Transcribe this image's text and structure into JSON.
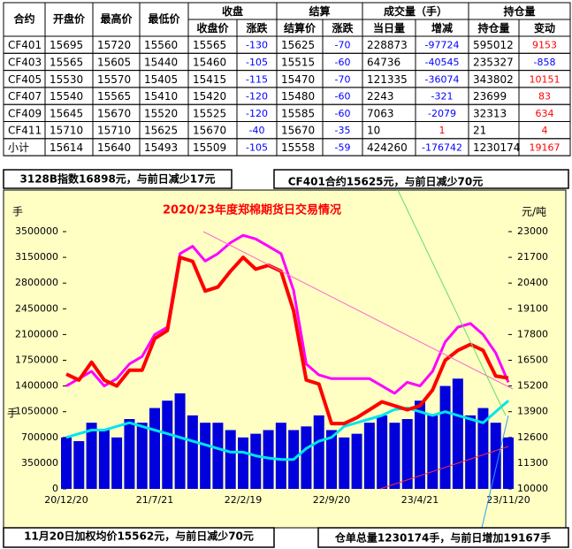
{
  "table": {
    "header_top": [
      "合约",
      "开盘价",
      "最高价",
      "最低价",
      "收盘",
      "结算",
      "成交量（手）",
      "持仓量"
    ],
    "header_sub": [
      "收盘价",
      "涨跌",
      "结算价",
      "涨跌",
      "当日量",
      "增减",
      "持仓量",
      "变动"
    ],
    "rows": [
      [
        "CF401",
        15695,
        15720,
        15560,
        15565,
        -130,
        15625,
        -70,
        228873,
        -97724,
        595012,
        9153
      ],
      [
        "CF403",
        15565,
        15605,
        15440,
        15460,
        -105,
        15515,
        -60,
        64736,
        -40545,
        235327,
        -858
      ],
      [
        "CF405",
        15530,
        15570,
        15405,
        15415,
        -115,
        15470,
        -70,
        121335,
        -36074,
        343802,
        10151
      ],
      [
        "CF407",
        15540,
        15565,
        15410,
        15420,
        -120,
        15480,
        -60,
        2243,
        -321,
        23699,
        83
      ],
      [
        "CF409",
        15645,
        15670,
        15520,
        15525,
        -120,
        15585,
        -60,
        7063,
        -2079,
        32313,
        634
      ],
      [
        "CF411",
        15710,
        15710,
        15625,
        15670,
        -40,
        15670,
        -35,
        10,
        1,
        21,
        4
      ],
      [
        "小计",
        15614,
        15640,
        15493,
        15509,
        -105,
        15558,
        -59,
        424260,
        -176742,
        1230174,
        19167
      ]
    ]
  },
  "notes": {
    "index": "3128B指数16898元，与前日减少17元",
    "contract": "CF401合约15625元，与前日减少70元",
    "average": "11月20日加权均价15562元，与前日减少70元",
    "warehouse": "仓单总量1230174手，与前日增加19167手"
  },
  "chart_data": {
    "type": "bar-line",
    "title": "2020/23年度郑棉期货日交易情况",
    "y_label": "手",
    "y_label_bottom": "手",
    "y2_label": "元/吨",
    "categories": [
      "20/12/20",
      null,
      null,
      null,
      null,
      null,
      null,
      "21/7/21",
      null,
      null,
      null,
      null,
      null,
      null,
      "22/2/19",
      null,
      null,
      null,
      null,
      null,
      null,
      "22/9/20",
      null,
      null,
      null,
      null,
      null,
      null,
      "23/4/21",
      null,
      null,
      null,
      null,
      null,
      null,
      "23/11/20"
    ],
    "ylim": [
      0,
      3500000
    ],
    "yticks": [
      0,
      350000,
      700000,
      1050000,
      1400000,
      1750000,
      2100000,
      2450000,
      2800000,
      3150000,
      3500000
    ],
    "y2lim": [
      10000,
      23000
    ],
    "y2ticks": [
      10000,
      11300,
      12600,
      13900,
      15200,
      16500,
      17800,
      19100,
      20400,
      21700,
      23000
    ],
    "series": [
      {
        "kind": "bar",
        "color": "#0000dd",
        "values": [
          700000,
          650000,
          900000,
          800000,
          700000,
          950000,
          900000,
          1100000,
          1200000,
          1300000,
          1000000,
          900000,
          900000,
          800000,
          700000,
          750000,
          800000,
          900000,
          800000,
          850000,
          1000000,
          800000,
          700000,
          750000,
          900000,
          1000000,
          900000,
          950000,
          1200000,
          1000000,
          1400000,
          1500000,
          1000000,
          1100000,
          900000,
          700000
        ]
      },
      {
        "kind": "line",
        "color": "#ff00ff",
        "values": [
          1400000,
          1500000,
          1600000,
          1400000,
          1500000,
          1700000,
          1800000,
          2100000,
          2200000,
          3200000,
          3300000,
          3100000,
          3200000,
          3350000,
          3450000,
          3400000,
          3300000,
          3200000,
          2700000,
          1700000,
          1550000,
          1500000,
          1500000,
          1500000,
          1500000,
          1400000,
          1300000,
          1450000,
          1400000,
          1600000,
          2000000,
          2200000,
          2250000,
          2100000,
          1850000,
          1450000
        ]
      },
      {
        "kind": "line",
        "color": "#00e5ee",
        "values": [
          700000,
          750000,
          800000,
          800000,
          850000,
          900000,
          850000,
          800000,
          750000,
          700000,
          650000,
          600000,
          550000,
          500000,
          500000,
          450000,
          420000,
          400000,
          400000,
          550000,
          650000,
          700000,
          850000,
          900000,
          950000,
          1000000,
          1080000,
          1100000,
          1050000,
          1000000,
          1050000,
          1000000,
          950000,
          900000,
          1050000,
          1200000
        ]
      },
      {
        "kind": "line",
        "axis": "y2",
        "color": "#ff0000",
        "values": [
          15800,
          15500,
          16400,
          15500,
          15200,
          16000,
          16000,
          17600,
          18000,
          21700,
          21500,
          20000,
          20200,
          21000,
          21700,
          21100,
          21300,
          21000,
          19000,
          15500,
          15300,
          13300,
          13300,
          13600,
          14000,
          14400,
          14200,
          14000,
          14200,
          15000,
          16500,
          17000,
          17300,
          17000,
          15700,
          15600
        ]
      }
    ]
  }
}
